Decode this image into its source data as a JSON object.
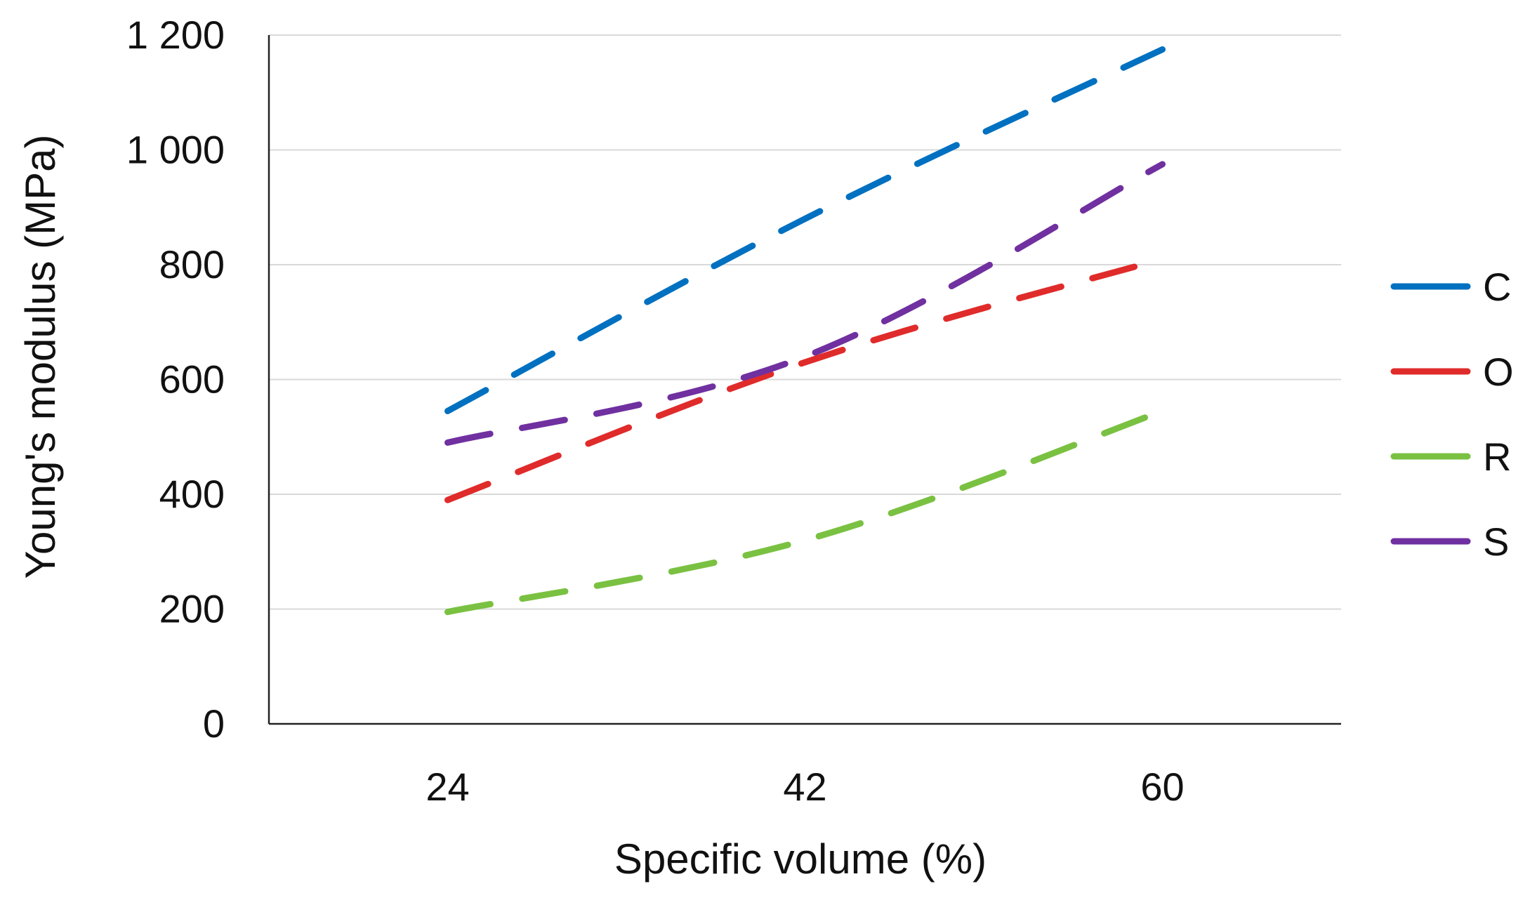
{
  "chart_data": {
    "type": "line",
    "title": "",
    "xlabel": "Specific volume (%)",
    "ylabel": "Young's modulus (MPa)",
    "categories": [
      "24",
      "42",
      "60"
    ],
    "y_ticks": [
      "0",
      "200",
      "400",
      "600",
      "800",
      "1 000",
      "1 200"
    ],
    "ylim": [
      0,
      1200
    ],
    "grid": true,
    "legend_position": "right",
    "line_style": "dashed",
    "series": [
      {
        "name": "C",
        "color": "#0070C0",
        "values": [
          545,
          880,
          1175
        ]
      },
      {
        "name": "O",
        "color": "#E02B2B",
        "values": [
          390,
          630,
          810
        ]
      },
      {
        "name": "R",
        "color": "#7AC142",
        "values": [
          195,
          320,
          545
        ]
      },
      {
        "name": "S",
        "color": "#7030A0",
        "values": [
          490,
          640,
          975
        ]
      }
    ]
  }
}
